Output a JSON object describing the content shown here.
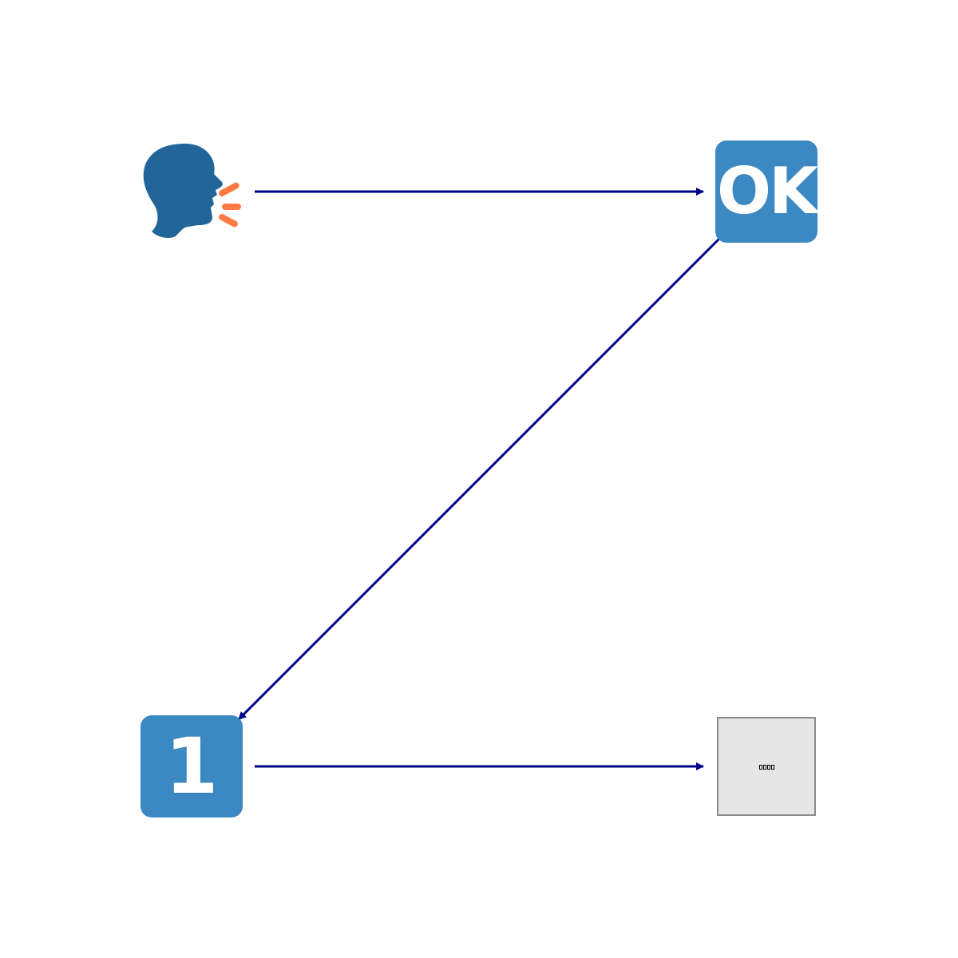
{
  "colors": {
    "tile_blue": "#3b88c3",
    "head_blue": "#226699",
    "sound_orange": "#ff7a45",
    "arrow": "#00008b",
    "placeholder_fill": "#e6e6e6",
    "placeholder_border": "#8c8c8c"
  },
  "nodes": {
    "speaker": {
      "icon": "speaking-head-icon"
    },
    "ok": {
      "label": "OK",
      "icon": "ok-button-icon"
    },
    "one": {
      "label": "1",
      "icon": "keycap-one-icon"
    },
    "placeholder": {
      "icon": "missing-glyph-icon",
      "glyph_count": 4
    }
  },
  "edges": [
    {
      "from": "speaker",
      "to": "ok"
    },
    {
      "from": "ok",
      "to": "one"
    },
    {
      "from": "one",
      "to": "placeholder"
    }
  ]
}
